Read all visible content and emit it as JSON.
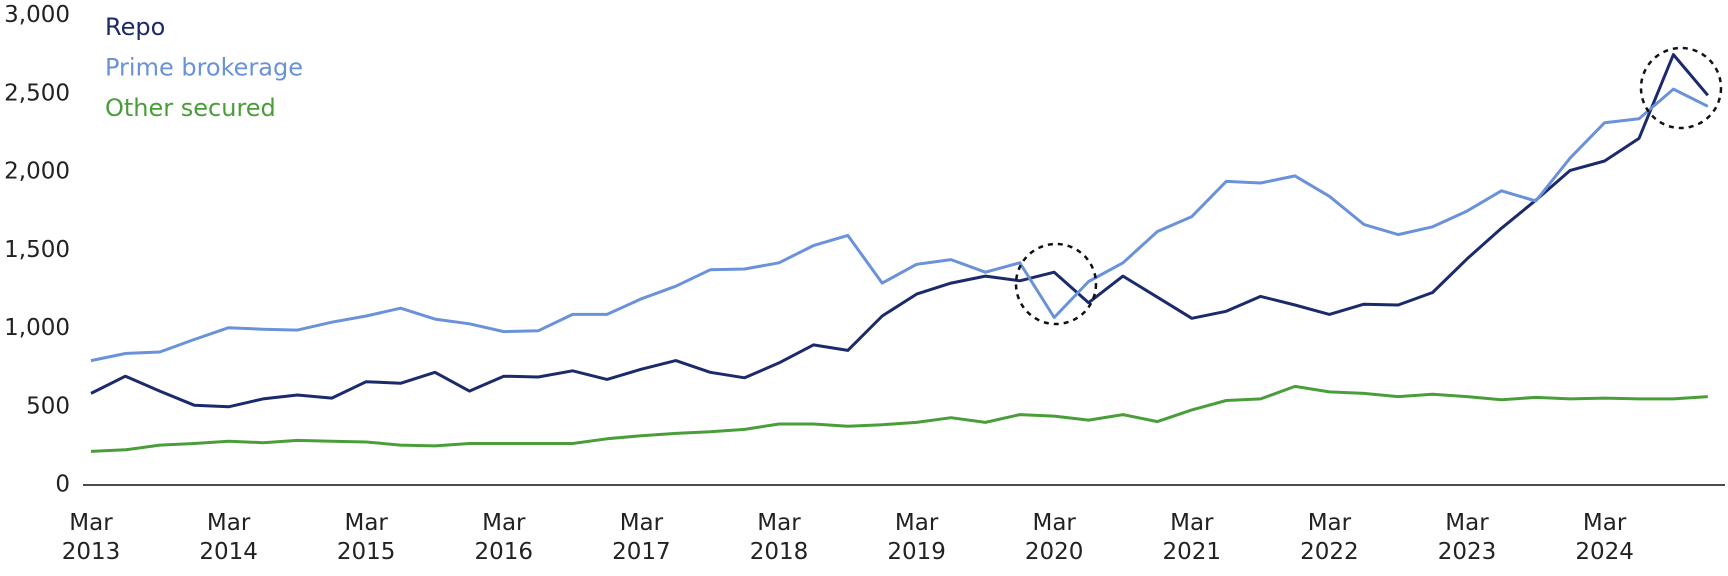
{
  "chart_data": {
    "type": "line",
    "categories": [
      "Mar 2013",
      null,
      null,
      null,
      "Mar 2014",
      null,
      null,
      null,
      "Mar 2015",
      null,
      null,
      null,
      "Mar 2016",
      null,
      null,
      null,
      "Mar 2017",
      null,
      null,
      null,
      "Mar 2018",
      null,
      null,
      null,
      "Mar 2019",
      null,
      null,
      null,
      "Mar 2020",
      null,
      null,
      null,
      "Mar 2021",
      null,
      null,
      null,
      "Mar 2022",
      null,
      null,
      null,
      "Mar 2023",
      null,
      null,
      null,
      "Mar 2024",
      null,
      null,
      null
    ],
    "series": [
      {
        "name": "Repo",
        "color": "#1b2a6b",
        "values": [
          585,
          695,
          600,
          510,
          500,
          550,
          575,
          555,
          660,
          650,
          720,
          600,
          695,
          690,
          730,
          675,
          740,
          795,
          720,
          685,
          780,
          895,
          860,
          1080,
          1220,
          1290,
          1335,
          1305,
          1360,
          1165,
          1335,
          1200,
          1065,
          1110,
          1205,
          1150,
          1090,
          1155,
          1150,
          1230,
          1445,
          1640,
          1820,
          2010,
          2070,
          2215,
          2750,
          2490
        ]
      },
      {
        "name": "Prime brokerage",
        "color": "#6a92d8",
        "values": [
          795,
          840,
          850,
          930,
          1005,
          995,
          990,
          1040,
          1080,
          1130,
          1060,
          1030,
          980,
          985,
          1090,
          1090,
          1190,
          1270,
          1375,
          1380,
          1420,
          1530,
          1595,
          1290,
          1410,
          1440,
          1360,
          1420,
          1070,
          1300,
          1420,
          1620,
          1715,
          1940,
          1930,
          1975,
          1845,
          1665,
          1600,
          1650,
          1750,
          1880,
          1815,
          2090,
          2315,
          2340,
          2530,
          2420
        ]
      },
      {
        "name": "Other secured",
        "color": "#4a9e3a",
        "values": [
          215,
          225,
          255,
          265,
          280,
          270,
          285,
          280,
          275,
          255,
          250,
          265,
          265,
          265,
          265,
          295,
          315,
          330,
          340,
          355,
          390,
          390,
          375,
          385,
          400,
          430,
          400,
          450,
          440,
          415,
          450,
          405,
          480,
          540,
          550,
          630,
          595,
          585,
          565,
          580,
          565,
          545,
          560,
          550,
          555,
          550,
          550,
          565
        ]
      }
    ],
    "ylim": [
      0,
      3000
    ],
    "yticks": [
      0,
      500,
      {
        "value": 1000,
        "label": "1,000"
      },
      {
        "value": 1500,
        "label": "1,500"
      },
      {
        "value": 2000,
        "label": "2,000"
      },
      {
        "value": 2500,
        "label": "2,500"
      },
      {
        "value": 3000,
        "label": "3,000"
      }
    ],
    "grid": false
  }
}
